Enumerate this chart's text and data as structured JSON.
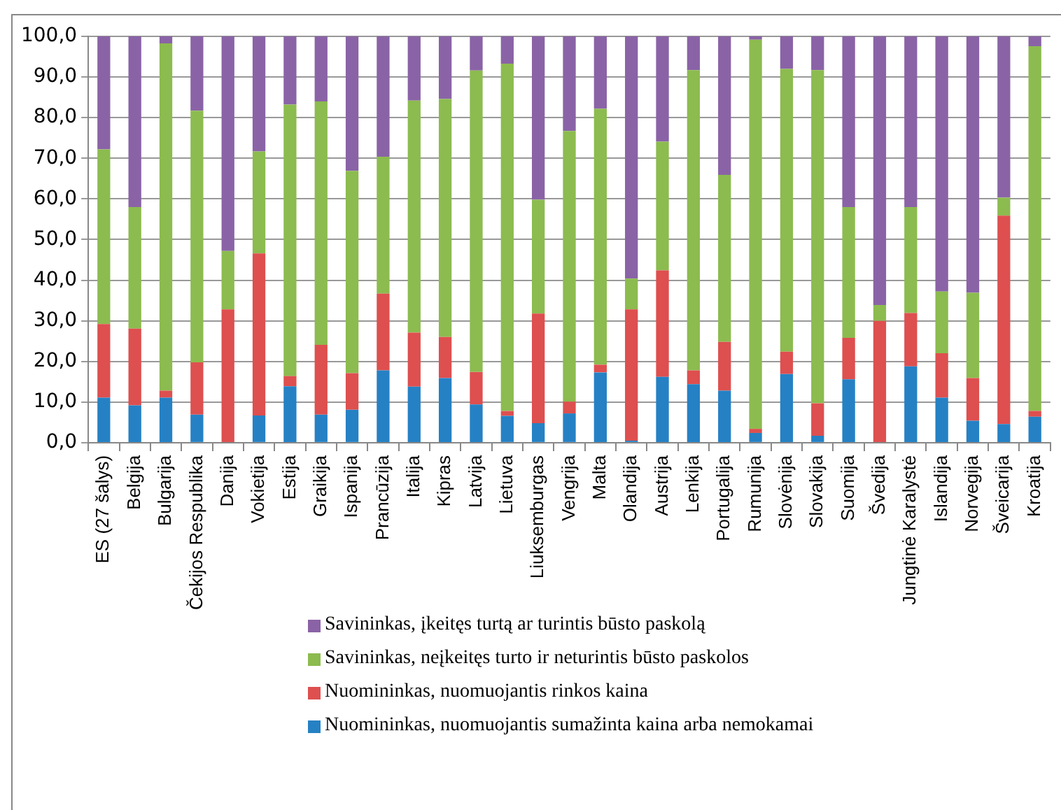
{
  "chart_data": {
    "type": "bar",
    "stacked": true,
    "legend": "bottom",
    "grid": "y",
    "categories": [
      "ES (27 šalys)",
      "Belgija",
      "Bulgarija",
      "Čekijos Respublika",
      "Danija",
      "Vokietija",
      "Estija",
      "Graikija",
      "Ispanija",
      "Prancūzija",
      "Italija",
      "Kipras",
      "Latvija",
      "Lietuva",
      "Liuksemburgas",
      "Vengrija",
      "Malta",
      "Olandija",
      "Austrija",
      "Lenkija",
      "Portugalija",
      "Rumunija",
      "Slovėnija",
      "Slovakija",
      "Suomija",
      "Švedija",
      "Jungtinė Karalystė",
      "Islandija",
      "Norvegija",
      "Šveicarija",
      "Kroatija"
    ],
    "ylim": [
      0,
      100
    ],
    "yticks": [
      {
        "value": 0,
        "label": "0,0"
      },
      {
        "value": 10,
        "label": "10,0"
      },
      {
        "value": 20,
        "label": "20,0"
      },
      {
        "value": 30,
        "label": "30,0"
      },
      {
        "value": 40,
        "label": "40,0"
      },
      {
        "value": 50,
        "label": "50,0"
      },
      {
        "value": 60,
        "label": "60,0"
      },
      {
        "value": 70,
        "label": "70,0"
      },
      {
        "value": 80,
        "label": "80,0"
      },
      {
        "value": 90,
        "label": "90,0"
      },
      {
        "value": 100,
        "label": "100,0"
      }
    ],
    "series": [
      {
        "name": "Nuomininkas, nuomuojantis sumažinta kaina arba nemokamai",
        "color": "#2581c4",
        "values": [
          11.1,
          9.2,
          11.1,
          6.9,
          0,
          6.7,
          13.9,
          6.9,
          8.1,
          17.8,
          13.8,
          15.9,
          9.4,
          6.6,
          4.8,
          7.2,
          17.3,
          0.5,
          16.2,
          14.4,
          12.8,
          2.4,
          16.9,
          1.7,
          15.6,
          0,
          18.8,
          11.1,
          5.4,
          4.6,
          6.4
        ]
      },
      {
        "name": "Nuomininkas, nuomuojantis rinkos kaina",
        "color": "#de4f4f",
        "values": [
          18.1,
          18.9,
          1.7,
          12.9,
          32.8,
          39.9,
          2.5,
          17.2,
          9.0,
          18.9,
          13.3,
          10.1,
          8.0,
          1.2,
          27.0,
          2.9,
          1.9,
          32.3,
          26.2,
          3.4,
          12.0,
          1.0,
          5.5,
          8.0,
          10.2,
          30.0,
          13.1,
          10.9,
          10.5,
          51.3,
          1.4
        ]
      },
      {
        "name": "Savininkas,  neįkeitęs turto ir neturintis būsto paskolos",
        "color": "#8cbb4f",
        "values": [
          43.0,
          29.9,
          85.5,
          61.9,
          14.4,
          25.1,
          66.8,
          59.9,
          49.8,
          33.7,
          57.1,
          58.6,
          74.2,
          85.5,
          28.0,
          66.6,
          63.0,
          7.6,
          31.7,
          73.9,
          41.1,
          95.8,
          69.6,
          82.0,
          32.2,
          3.9,
          26.1,
          15.2,
          21.0,
          4.4,
          89.8
        ]
      },
      {
        "name": "Savininkas, įkeitęs turtą ar turintis būsto paskolą",
        "color": "#8a63a6",
        "values": [
          27.8,
          42.0,
          1.7,
          18.3,
          52.8,
          28.3,
          16.8,
          16.0,
          33.1,
          29.6,
          15.8,
          15.4,
          8.4,
          6.7,
          40.2,
          23.3,
          17.8,
          59.6,
          25.9,
          8.3,
          34.1,
          0.8,
          8.0,
          8.3,
          42.0,
          66.1,
          42.0,
          62.8,
          63.1,
          39.7,
          2.4
        ]
      }
    ]
  }
}
